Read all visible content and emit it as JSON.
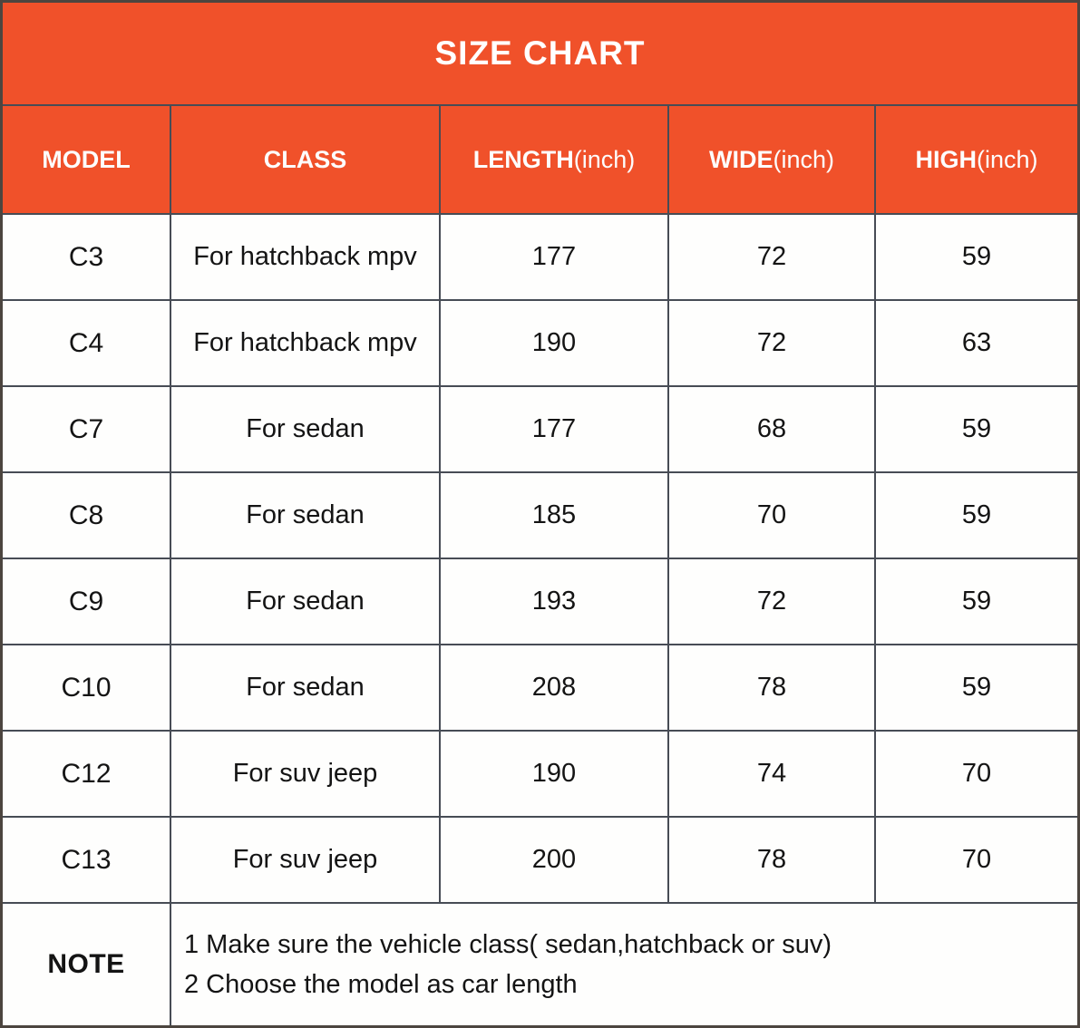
{
  "title": "SIZE CHART",
  "columns": [
    {
      "label": "MODEL",
      "unit": ""
    },
    {
      "label": "CLASS",
      "unit": ""
    },
    {
      "label": "LENGTH",
      "unit": "(inch)"
    },
    {
      "label": "WIDE",
      "unit": "(inch)"
    },
    {
      "label": "HIGH",
      "unit": "(inch)"
    }
  ],
  "note_label": "NOTE",
  "colors": {
    "header_bg": "#f0512a",
    "header_text": "#ffffff",
    "body_bg": "#fefefd",
    "body_text": "#141414",
    "grid_line": "#474c55",
    "outer_border": "#4c453f"
  },
  "chart_data": {
    "type": "table",
    "title": "SIZE CHART",
    "columns": [
      "MODEL",
      "CLASS",
      "LENGTH(inch)",
      "WIDE(inch)",
      "HIGH(inch)"
    ],
    "rows": [
      [
        "C3",
        "For hatchback mpv",
        "177",
        "72",
        "59"
      ],
      [
        "C4",
        "For hatchback mpv",
        "190",
        "72",
        "63"
      ],
      [
        "C7",
        "For sedan",
        "177",
        "68",
        "59"
      ],
      [
        "C8",
        "For sedan",
        "185",
        "70",
        "59"
      ],
      [
        "C9",
        "For sedan",
        "193",
        "72",
        "59"
      ],
      [
        "C10",
        "For sedan",
        "208",
        "78",
        "59"
      ],
      [
        "C12",
        "For suv jeep",
        "190",
        "74",
        "70"
      ],
      [
        "C13",
        "For suv jeep",
        "200",
        "78",
        "70"
      ]
    ],
    "note": [
      "1 Make sure the vehicle class( sedan,hatchback or suv)",
      "2 Choose the model as car length"
    ]
  }
}
